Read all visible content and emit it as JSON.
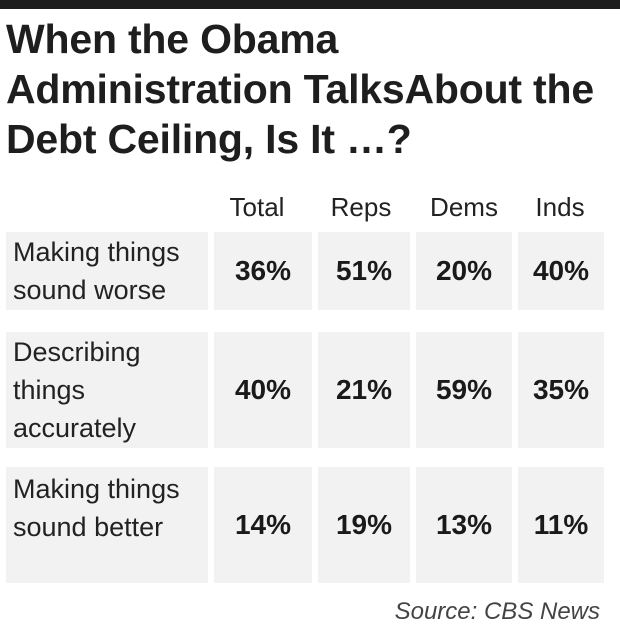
{
  "chart_data": {
    "type": "table",
    "title": "When the Obama Administration TalksAbout the Debt Ceiling, Is It …?",
    "columns": [
      "Total",
      "Reps",
      "Dems",
      "Inds"
    ],
    "rows": [
      {
        "label": "Making things sound worse",
        "values": [
          "36%",
          "51%",
          "20%",
          "40%"
        ]
      },
      {
        "label": "Describing things accurately",
        "values": [
          "40%",
          "21%",
          "59%",
          "35%"
        ]
      },
      {
        "label": "Making things sound better",
        "values": [
          "14%",
          "19%",
          "13%",
          "11%"
        ]
      }
    ],
    "source": "Source: CBS News"
  }
}
